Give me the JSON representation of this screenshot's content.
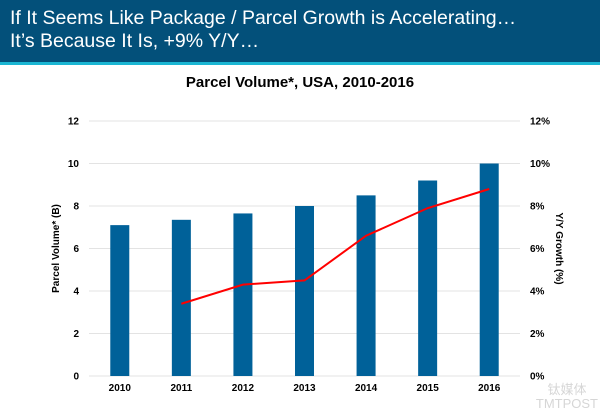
{
  "header": {
    "line1": "If It Seems Like Package / Parcel Growth is Accelerating…",
    "line2": "It’s Because It Is, +9% Y/Y…"
  },
  "watermark": {
    "cn": "钛媒体",
    "en": "TMTPOST"
  },
  "chart_data": {
    "type": "bar+line",
    "title": "Parcel Volume*, USA, 2010-2016",
    "categories": [
      "2010",
      "2011",
      "2012",
      "2013",
      "2014",
      "2015",
      "2016"
    ],
    "series": [
      {
        "name": "Parcel Volume* (B)",
        "type": "bar",
        "axis": "left",
        "color": "#006199",
        "values": [
          7.1,
          7.35,
          7.65,
          8.0,
          8.5,
          9.2,
          10.0
        ]
      },
      {
        "name": "Y/Y Growth (%)",
        "type": "line",
        "axis": "right",
        "color": "#ff0000",
        "values": [
          null,
          3.4,
          4.3,
          4.5,
          6.6,
          7.9,
          8.8
        ]
      }
    ],
    "ylabel": "Parcel Volume* (B)",
    "y2label": "Y/Y Growth (%)",
    "ylim": [
      0,
      12
    ],
    "y2lim": [
      0,
      12
    ],
    "yticks": [
      "0",
      "2",
      "4",
      "6",
      "8",
      "10",
      "12"
    ],
    "y2ticks": [
      "0%",
      "2%",
      "4%",
      "6%",
      "8%",
      "10%",
      "12%"
    ],
    "grid": true
  }
}
